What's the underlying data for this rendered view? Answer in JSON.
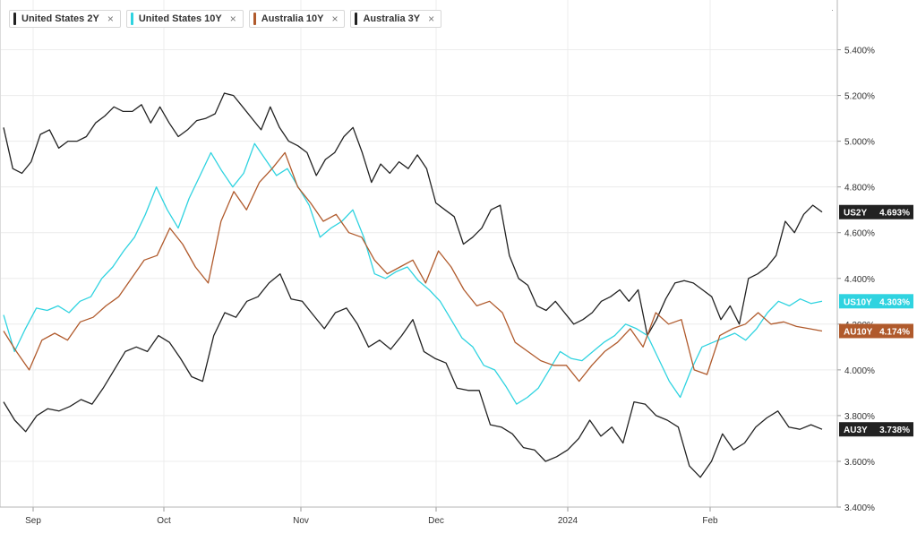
{
  "legend": [
    {
      "label": "United States 2Y",
      "color": "#222222"
    },
    {
      "label": "United States 10Y",
      "color": "#2fd3e0"
    },
    {
      "label": "Australia 10Y",
      "color": "#b05a2c"
    },
    {
      "label": "Australia 3Y",
      "color": "#222222"
    }
  ],
  "remove_glyph": "×",
  "menu_glyph": "·",
  "chart_data": {
    "type": "line",
    "xlabel": "",
    "ylabel": "",
    "x_ticks": [
      "Sep",
      "Oct",
      "Nov",
      "Dec",
      "2024",
      "Feb"
    ],
    "y_ticks": [
      "5.400%",
      "5.200%",
      "5.000%",
      "4.800%",
      "4.600%",
      "4.400%",
      "4.200%",
      "4.000%",
      "3.800%",
      "3.600%",
      "3.400%"
    ],
    "ylim": [
      3.4,
      5.6
    ],
    "grid": true,
    "series": [
      {
        "name": "United States 2Y",
        "short": "US2Y",
        "last_label": "4.693%",
        "color": "#222222",
        "values": [
          5.06,
          4.88,
          4.86,
          4.91,
          5.03,
          5.05,
          4.97,
          5.0,
          5.0,
          5.02,
          5.08,
          5.11,
          5.15,
          5.13,
          5.13,
          5.16,
          5.08,
          5.15,
          5.08,
          5.02,
          5.05,
          5.09,
          5.1,
          5.12,
          5.21,
          5.2,
          5.15,
          5.1,
          5.05,
          5.15,
          5.06,
          5.0,
          4.98,
          4.95,
          4.85,
          4.92,
          4.95,
          5.02,
          5.06,
          4.95,
          4.82,
          4.9,
          4.86,
          4.91,
          4.88,
          4.94,
          4.88,
          4.73,
          4.7,
          4.67,
          4.55,
          4.58,
          4.62,
          4.7,
          4.72,
          4.5,
          4.4,
          4.37,
          4.28,
          4.26,
          4.3,
          4.25,
          4.2,
          4.22,
          4.25,
          4.3,
          4.32,
          4.35,
          4.3,
          4.35,
          4.15,
          4.22,
          4.31,
          4.38,
          4.39,
          4.38,
          4.35,
          4.32,
          4.22,
          4.28,
          4.2,
          4.4,
          4.42,
          4.45,
          4.5,
          4.65,
          4.6,
          4.68,
          4.72,
          4.69
        ],
        "x_end": 0.985
      },
      {
        "name": "United States 10Y",
        "short": "US10Y",
        "last_label": "4.303%",
        "color": "#2fd3e0",
        "values": [
          4.24,
          4.08,
          4.18,
          4.27,
          4.26,
          4.28,
          4.25,
          4.3,
          4.32,
          4.4,
          4.45,
          4.52,
          4.58,
          4.68,
          4.8,
          4.7,
          4.62,
          4.75,
          4.85,
          4.95,
          4.87,
          4.8,
          4.86,
          4.99,
          4.92,
          4.85,
          4.88,
          4.8,
          4.72,
          4.58,
          4.62,
          4.65,
          4.7,
          4.58,
          4.42,
          4.4,
          4.43,
          4.45,
          4.39,
          4.35,
          4.3,
          4.22,
          4.14,
          4.1,
          4.02,
          4.0,
          3.93,
          3.85,
          3.88,
          3.92,
          4.0,
          4.08,
          4.05,
          4.04,
          4.08,
          4.12,
          4.15,
          4.2,
          4.18,
          4.15,
          4.05,
          3.95,
          3.88,
          4.0,
          4.1,
          4.12,
          4.14,
          4.16,
          4.13,
          4.18,
          4.25,
          4.3,
          4.28,
          4.31,
          4.29,
          4.3
        ],
        "x_end": 0.985
      },
      {
        "name": "Australia 10Y",
        "short": "AU10Y",
        "last_label": "4.174%",
        "color": "#b05a2c",
        "values": [
          4.17,
          4.08,
          4.0,
          4.13,
          4.16,
          4.13,
          4.21,
          4.23,
          4.28,
          4.32,
          4.4,
          4.48,
          4.5,
          4.62,
          4.55,
          4.45,
          4.38,
          4.65,
          4.78,
          4.7,
          4.82,
          4.88,
          4.95,
          4.8,
          4.73,
          4.65,
          4.68,
          4.6,
          4.58,
          4.48,
          4.42,
          4.45,
          4.48,
          4.38,
          4.52,
          4.45,
          4.35,
          4.28,
          4.3,
          4.25,
          4.12,
          4.08,
          4.04,
          4.02,
          4.02,
          3.95,
          4.02,
          4.08,
          4.12,
          4.18,
          4.1,
          4.25,
          4.2,
          4.22,
          4.0,
          3.98,
          4.15,
          4.18,
          4.2,
          4.25,
          4.2,
          4.21,
          4.19,
          4.18,
          4.17
        ],
        "x_end": 0.985
      },
      {
        "name": "Australia 3Y",
        "short": "AU3Y",
        "last_label": "3.738%",
        "color": "#222222",
        "values": [
          3.86,
          3.78,
          3.73,
          3.8,
          3.83,
          3.82,
          3.84,
          3.87,
          3.85,
          3.92,
          4.0,
          4.08,
          4.1,
          4.08,
          4.15,
          4.12,
          4.05,
          3.97,
          3.95,
          4.15,
          4.25,
          4.23,
          4.3,
          4.32,
          4.38,
          4.42,
          4.31,
          4.3,
          4.24,
          4.18,
          4.25,
          4.27,
          4.2,
          4.1,
          4.13,
          4.09,
          4.15,
          4.22,
          4.08,
          4.05,
          4.03,
          3.92,
          3.91,
          3.91,
          3.76,
          3.75,
          3.72,
          3.66,
          3.65,
          3.6,
          3.62,
          3.65,
          3.7,
          3.78,
          3.71,
          3.75,
          3.68,
          3.86,
          3.85,
          3.8,
          3.78,
          3.75,
          3.58,
          3.53,
          3.6,
          3.72,
          3.65,
          3.68,
          3.75,
          3.79,
          3.82,
          3.75,
          3.74,
          3.76,
          3.74
        ],
        "x_end": 0.985
      }
    ]
  }
}
